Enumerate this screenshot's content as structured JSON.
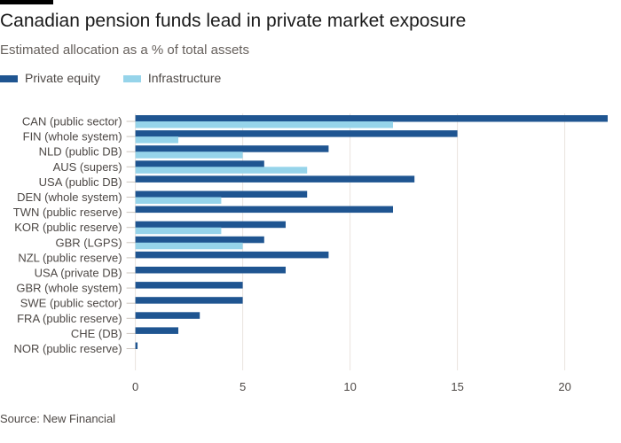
{
  "title": "Canadian pension funds lead in private market exposure",
  "subtitle": "Estimated allocation as a % of total assets",
  "source": "Source: New Financial",
  "chart_data": {
    "type": "bar",
    "orientation": "horizontal",
    "categories": [
      "CAN (public sector)",
      "FIN (whole system)",
      "NLD (public DB)",
      "AUS (supers)",
      "USA (public DB)",
      "DEN (whole system)",
      "TWN (public reserve)",
      "KOR (public reserve)",
      "GBR (LGPS)",
      "NZL (public reserve)",
      "USA (private DB)",
      "GBR (whole system)",
      "SWE (public sector)",
      "FRA (public reserve)",
      "CHE (DB)",
      "NOR (public reserve)"
    ],
    "series": [
      {
        "name": "Private equity",
        "color": "#1f5591",
        "values": [
          22,
          15,
          9,
          6,
          13,
          8,
          12,
          7,
          6,
          9,
          7,
          5,
          5,
          3,
          2,
          0.1
        ]
      },
      {
        "name": "Infrastructure",
        "color": "#96d4ea",
        "values": [
          12,
          2,
          5,
          8,
          null,
          4,
          null,
          4,
          5,
          null,
          null,
          null,
          null,
          null,
          null,
          null
        ]
      }
    ],
    "xlim": [
      0,
      22
    ],
    "xticks": [
      "0",
      "5",
      "10",
      "15",
      "20"
    ],
    "grid": true,
    "legend": "top-left"
  }
}
